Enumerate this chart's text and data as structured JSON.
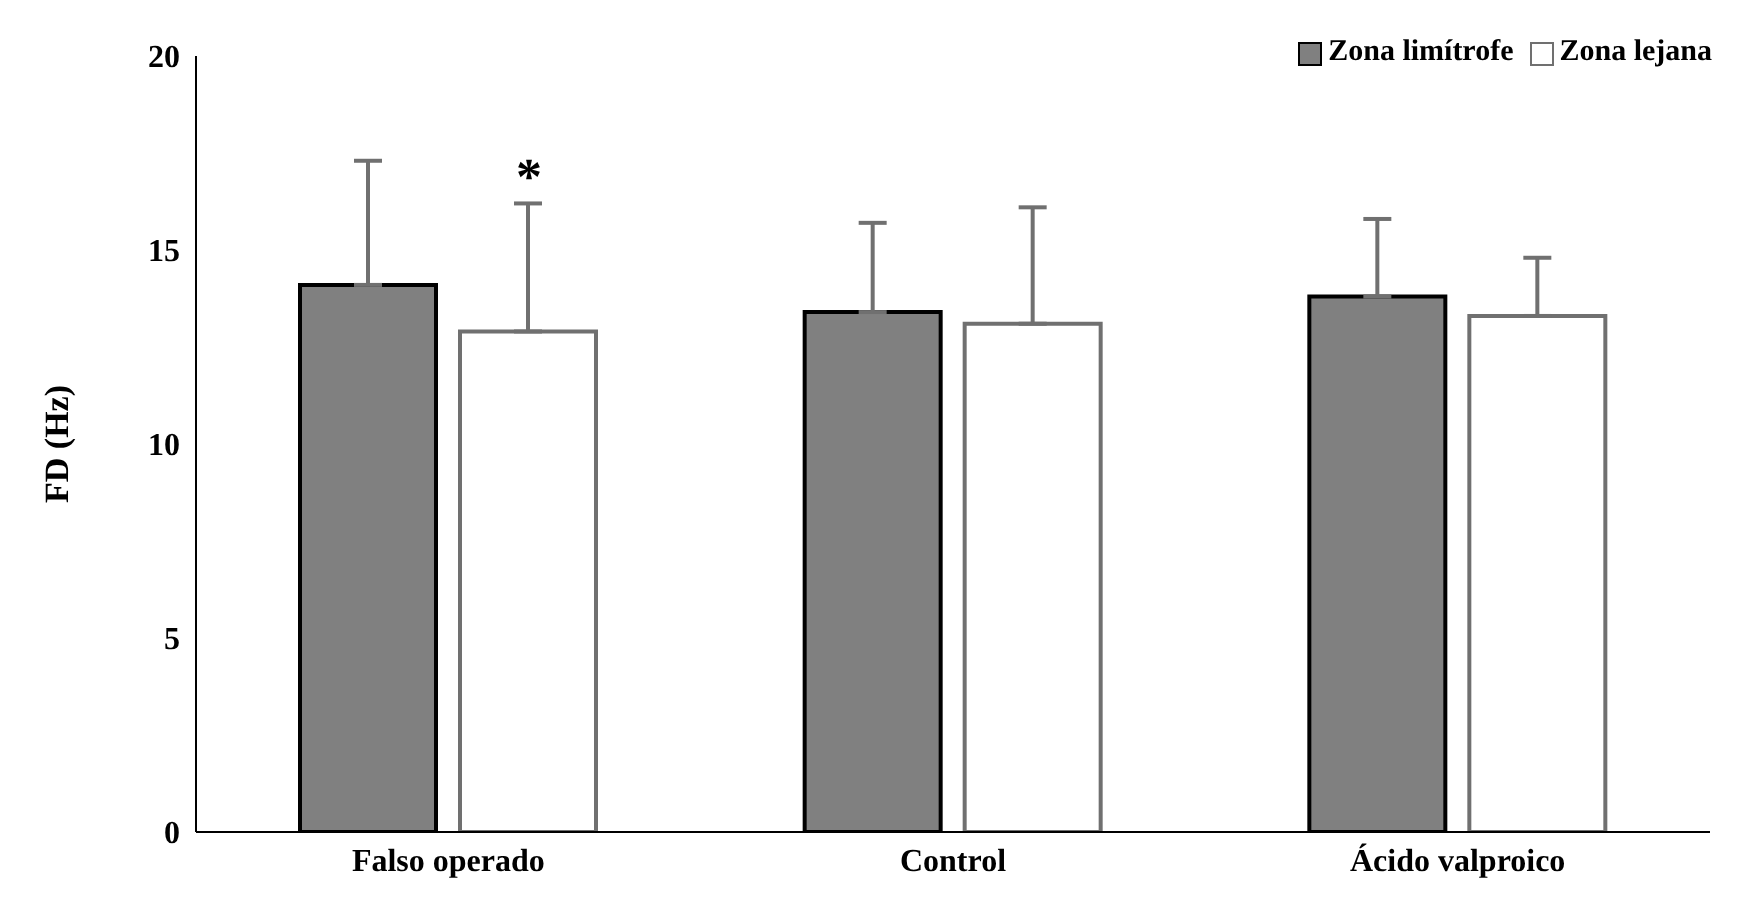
{
  "chart_data": {
    "type": "bar",
    "ylabel": "FD (Hz)",
    "categories": [
      "Falso operado",
      "Control",
      "Ácido valproico"
    ],
    "series": [
      {
        "name": "Zona limítrofe",
        "color": "#808080",
        "values": [
          14.1,
          13.4,
          13.8
        ],
        "errors": [
          3.2,
          2.3,
          2.0
        ]
      },
      {
        "name": "Zona lejana",
        "color": "#ffffff",
        "values": [
          12.9,
          13.1,
          13.3
        ],
        "errors": [
          3.3,
          3.0,
          1.5
        ]
      }
    ],
    "ylim": [
      0,
      20
    ],
    "yticks": [
      0,
      5,
      10,
      15,
      20
    ],
    "legend": "top right",
    "annotations": [
      "*"
    ]
  }
}
